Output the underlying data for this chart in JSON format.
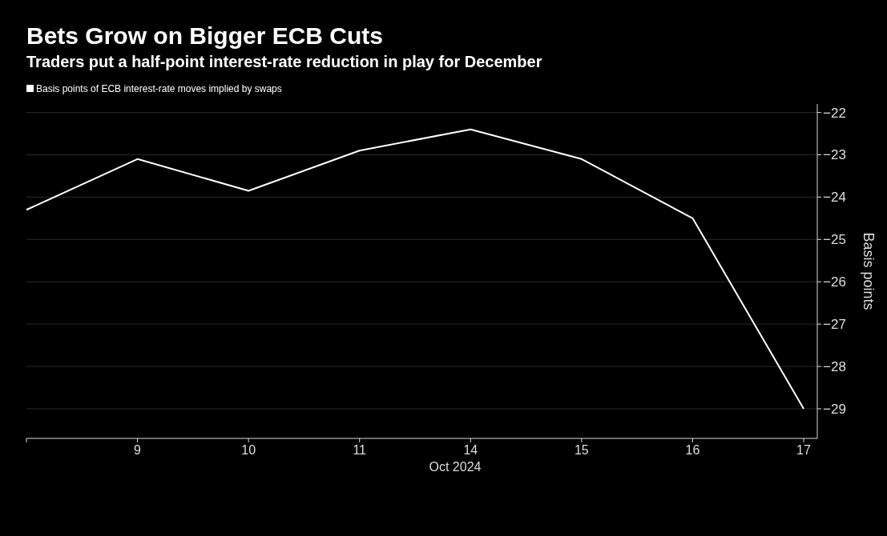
{
  "chart_data": {
    "type": "line",
    "title": "Bets Grow on Bigger ECB Cuts",
    "subtitle": "Traders put a half-point interest-rate reduction in play for December",
    "xlabel": "Oct 2024",
    "ylabel": "Basis points",
    "categories": [
      null,
      "9",
      "10",
      "11",
      "14",
      "15",
      "16",
      "17"
    ],
    "series": [
      {
        "name": "Basis points of ECB interest-rate moves implied by swaps",
        "color": "#ffffff",
        "values": [
          -24.3,
          -23.1,
          -23.85,
          -22.9,
          -22.4,
          -23.1,
          -24.5,
          -29
        ]
      }
    ],
    "ylim": [
      -29.7,
      -21.8
    ],
    "yticks": [
      -22,
      -23,
      -24,
      -25,
      -26,
      -27,
      -28,
      -29
    ],
    "grid": "y",
    "legend": "top left",
    "marker": "none",
    "line_style": "solid"
  }
}
